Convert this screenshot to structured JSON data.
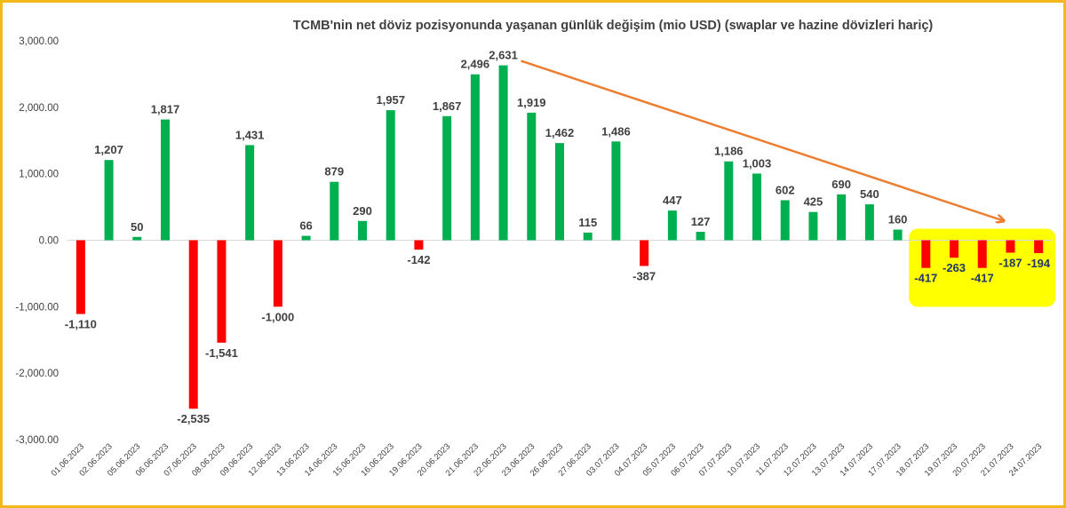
{
  "chart_data": {
    "type": "bar",
    "title": "TCMB'nin net döviz pozisyonunda yaşanan günlük değişim (mio USD) (swaplar ve hazine dövizleri hariç)",
    "xlabel": "",
    "ylabel": "",
    "ylim": [
      -3000,
      3000
    ],
    "yticks": [
      3000,
      2000,
      1000,
      0,
      -1000,
      -2000,
      -3000
    ],
    "ytick_labels": [
      "3,000.00",
      "2,000.00",
      "1,000.00",
      "0.00",
      "-1,000.00",
      "-2,000.00",
      "-3,000.00"
    ],
    "categories": [
      "01.06.2023",
      "02.06.2023",
      "05.06.2023",
      "06.06.2023",
      "07.06.2023",
      "08.06.2023",
      "09.06.2023",
      "12.06.2023",
      "13.06.2023",
      "14.06.2023",
      "15.06.2023",
      "16.06.2023",
      "19.06.2023",
      "20.06.2023",
      "21.06.2023",
      "22.06.2023",
      "23.06.2023",
      "26.06.2023",
      "27.06.2023",
      "03.07.2023",
      "04.07.2023",
      "05.07.2023",
      "06.07.2023",
      "07.07.2023",
      "10.07.2023",
      "11.07.2023",
      "12.07.2023",
      "13.07.2023",
      "14.07.2023",
      "17.07.2023",
      "18.07.2023",
      "19.07.2023",
      "20.07.2023",
      "21.07.2023",
      "24.07.2023"
    ],
    "values": [
      -1110,
      1207,
      50,
      1817,
      -2535,
      -1541,
      1431,
      -1000,
      66,
      879,
      290,
      1957,
      -142,
      1867,
      2496,
      2631,
      1919,
      1462,
      115,
      1486,
      -387,
      447,
      127,
      1186,
      1003,
      602,
      425,
      690,
      540,
      160,
      -417,
      -263,
      -417,
      -187,
      -194
    ],
    "value_labels": [
      "-1,110",
      "1,207",
      "50",
      "1,817",
      "-2,535",
      "-1,541",
      "1,431",
      "-1,000",
      "66",
      "879",
      "290",
      "1,957",
      "-142",
      "1,867",
      "2,496",
      "2,631",
      "1,919",
      "1,462",
      "115",
      "1,486",
      "-387",
      "447",
      "127",
      "1,186",
      "1,003",
      "602",
      "425",
      "690",
      "540",
      "160",
      "-417",
      "-263",
      "-417",
      "-187",
      "-194"
    ],
    "grid": false,
    "legend": "none",
    "colors": {
      "positive": "#00b050",
      "negative": "#ff0000",
      "highlight_box": "#ffff00",
      "highlight_border": "#f2b81c",
      "arrow": "#ed7d31"
    },
    "annotations": [
      {
        "type": "arrow",
        "from_category": "22.06.2023",
        "to_category": "21.07.2023"
      },
      {
        "type": "highlight-box",
        "from_category": "18.07.2023",
        "to_category": "24.07.2023"
      }
    ]
  }
}
